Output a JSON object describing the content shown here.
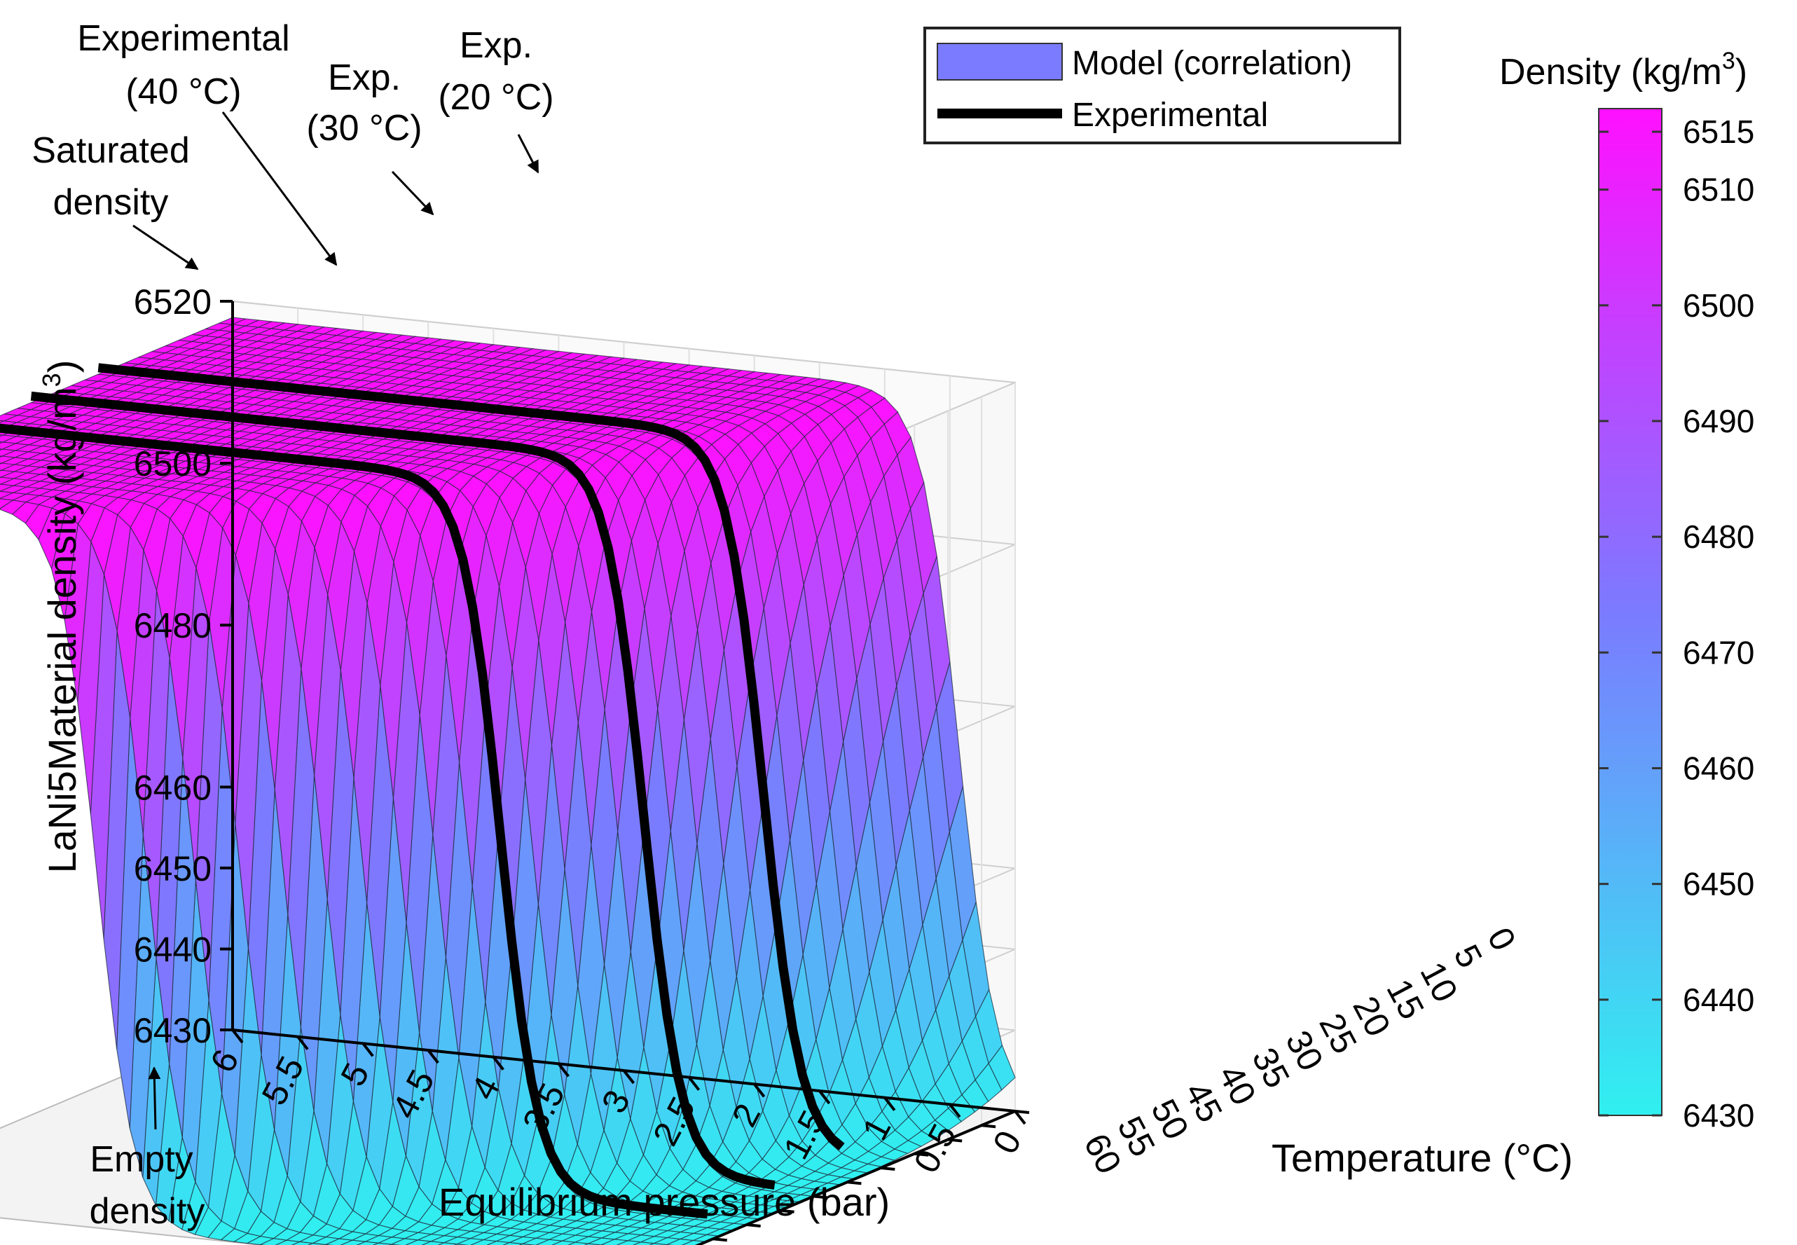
{
  "chart_data": {
    "type": "surface3d",
    "zlabel": "LaNi5Material density (kg/m",
    "zlabel_sup": "3",
    "zlabel_tail": ")",
    "xlabel": "Equilibrium pressure (bar)",
    "ylabel": "Temperature (°C)",
    "zlim": [
      6430,
      6520
    ],
    "z_ticks": [
      "6430",
      "6440",
      "6450",
      "6460",
      "6480",
      "6500",
      "6520"
    ],
    "pressure_ticks": [
      "6",
      "5.5",
      "5",
      "4.5",
      "4",
      "3.5",
      "3",
      "2.5",
      "2",
      "1.5",
      "1",
      "0.5",
      "0"
    ],
    "temperature_ticks": [
      "0",
      "5",
      "10",
      "15",
      "20",
      "25",
      "30",
      "35",
      "40",
      "45",
      "50",
      "55",
      "60"
    ],
    "pressure_range": [
      0,
      6
    ],
    "temperature_range": [
      0,
      60
    ],
    "empty_density": 6430,
    "saturated_density": 6520,
    "experimental_temperatures": [
      20,
      30,
      40
    ],
    "legend": {
      "model": "Model (correlation)",
      "experimental": "Experimental"
    },
    "colorbar": {
      "title": "Density (kg/m",
      "title_sup": "3",
      "title_tail": ")",
      "range": [
        6430,
        6517
      ],
      "ticks": [
        "6430",
        "6440",
        "6450",
        "6460",
        "6470",
        "6480",
        "6490",
        "6500",
        "6510",
        "6515"
      ],
      "color_low": "#30f0f0",
      "color_mid": "#7b7bff",
      "color_high": "#ff10ff"
    },
    "annotations": {
      "experimental_40_line1": "Experimental",
      "experimental_40_line2": "(40 °C)",
      "exp_30_line1": "Exp.",
      "exp_30_line2": "(30 °C)",
      "exp_20_line1": "Exp.",
      "exp_20_line2": "(20 °C)",
      "saturated_line1": "Saturated",
      "saturated_line2": "density",
      "empty_line1": "Empty",
      "empty_line2": "density"
    }
  }
}
